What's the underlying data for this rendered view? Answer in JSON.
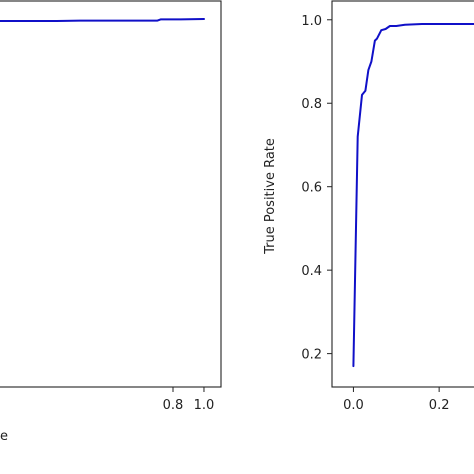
{
  "chart_data": [
    {
      "type": "line",
      "title": "",
      "xlabel": "e",
      "ylabel": "",
      "xlim": [
        -0.35,
        1.11
      ],
      "ylim": [
        0.08,
        1.045
      ],
      "xticks": [
        0.8,
        1.0
      ],
      "xtick_labels": [
        "0.8",
        "1.0"
      ],
      "yticks": [],
      "ytick_labels": [],
      "grid": false,
      "series": [
        {
          "color": "#1010c8",
          "x": [
            -0.35,
            0.05,
            0.2,
            0.35,
            0.55,
            0.7,
            0.72,
            0.85,
            1.0
          ],
          "y": [
            0.995,
            0.995,
            0.996,
            0.996,
            0.996,
            0.996,
            0.999,
            0.999,
            1.0
          ]
        }
      ]
    },
    {
      "type": "line",
      "title": "",
      "xlabel": "",
      "ylabel": "True Positive Rate",
      "xlim": [
        -0.05,
        0.3
      ],
      "ylim": [
        0.12,
        1.045
      ],
      "xticks": [
        0.0,
        0.2
      ],
      "xtick_labels": [
        "0.0",
        "0.2"
      ],
      "yticks": [
        0.2,
        0.4,
        0.6,
        0.8,
        1.0
      ],
      "ytick_labels": [
        "0.2",
        "0.4",
        "0.6",
        "0.8",
        "1.0"
      ],
      "grid": false,
      "series": [
        {
          "color": "#1010c8",
          "x": [
            0.0,
            0.01,
            0.02,
            0.028,
            0.035,
            0.042,
            0.05,
            0.055,
            0.065,
            0.075,
            0.085,
            0.1,
            0.12,
            0.16,
            0.2,
            0.25,
            0.3
          ],
          "y": [
            0.17,
            0.72,
            0.82,
            0.83,
            0.88,
            0.9,
            0.95,
            0.955,
            0.975,
            0.978,
            0.985,
            0.985,
            0.988,
            0.99,
            0.99,
            0.99,
            0.99
          ]
        }
      ]
    }
  ]
}
